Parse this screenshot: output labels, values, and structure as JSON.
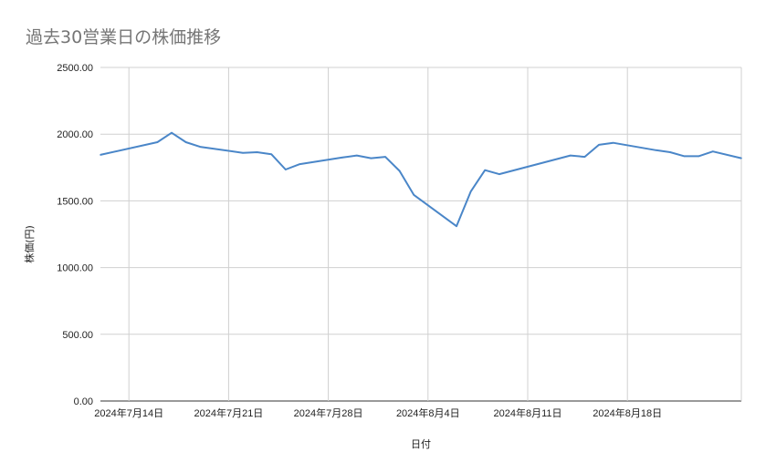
{
  "chart_data": {
    "type": "line",
    "title": "過去30営業日の株価推移",
    "xlabel": "日付",
    "ylabel": "株価(円)",
    "ylim": [
      0,
      2500
    ],
    "y_ticks": [
      "0.00",
      "500.00",
      "1000.00",
      "1500.00",
      "2000.00",
      "2500.00"
    ],
    "x_range": [
      "2024-07-12",
      "2024-08-26"
    ],
    "x_ticks": [
      {
        "date": "2024-07-14",
        "label": "2024年7月14日"
      },
      {
        "date": "2024-07-21",
        "label": "2024年7月21日"
      },
      {
        "date": "2024-07-28",
        "label": "2024年7月28日"
      },
      {
        "date": "2024-08-04",
        "label": "2024年8月4日"
      },
      {
        "date": "2024-08-11",
        "label": "2024年8月11日"
      },
      {
        "date": "2024-08-18",
        "label": "2024年8月18日"
      }
    ],
    "grid": true,
    "legend": "none",
    "line_color": "#4a86c8",
    "series": [
      {
        "points": [
          {
            "x": "2024-07-12",
            "y": 1845
          },
          {
            "x": "2024-07-16",
            "y": 1940
          },
          {
            "x": "2024-07-17",
            "y": 2010
          },
          {
            "x": "2024-07-18",
            "y": 1940
          },
          {
            "x": "2024-07-19",
            "y": 1905
          },
          {
            "x": "2024-07-22",
            "y": 1860
          },
          {
            "x": "2024-07-23",
            "y": 1865
          },
          {
            "x": "2024-07-24",
            "y": 1850
          },
          {
            "x": "2024-07-25",
            "y": 1735
          },
          {
            "x": "2024-07-26",
            "y": 1775
          },
          {
            "x": "2024-07-29",
            "y": 1825
          },
          {
            "x": "2024-07-30",
            "y": 1840
          },
          {
            "x": "2024-07-31",
            "y": 1820
          },
          {
            "x": "2024-08-01",
            "y": 1830
          },
          {
            "x": "2024-08-02",
            "y": 1725
          },
          {
            "x": "2024-08-03",
            "y": 1545
          },
          {
            "x": "2024-08-06",
            "y": 1310
          },
          {
            "x": "2024-08-07",
            "y": 1570
          },
          {
            "x": "2024-08-08",
            "y": 1730
          },
          {
            "x": "2024-08-09",
            "y": 1700
          },
          {
            "x": "2024-08-14",
            "y": 1840
          },
          {
            "x": "2024-08-15",
            "y": 1830
          },
          {
            "x": "2024-08-16",
            "y": 1920
          },
          {
            "x": "2024-08-17",
            "y": 1935
          },
          {
            "x": "2024-08-20",
            "y": 1880
          },
          {
            "x": "2024-08-21",
            "y": 1865
          },
          {
            "x": "2024-08-22",
            "y": 1835
          },
          {
            "x": "2024-08-23",
            "y": 1835
          },
          {
            "x": "2024-08-24",
            "y": 1870
          },
          {
            "x": "2024-08-26",
            "y": 1820
          }
        ]
      }
    ]
  }
}
